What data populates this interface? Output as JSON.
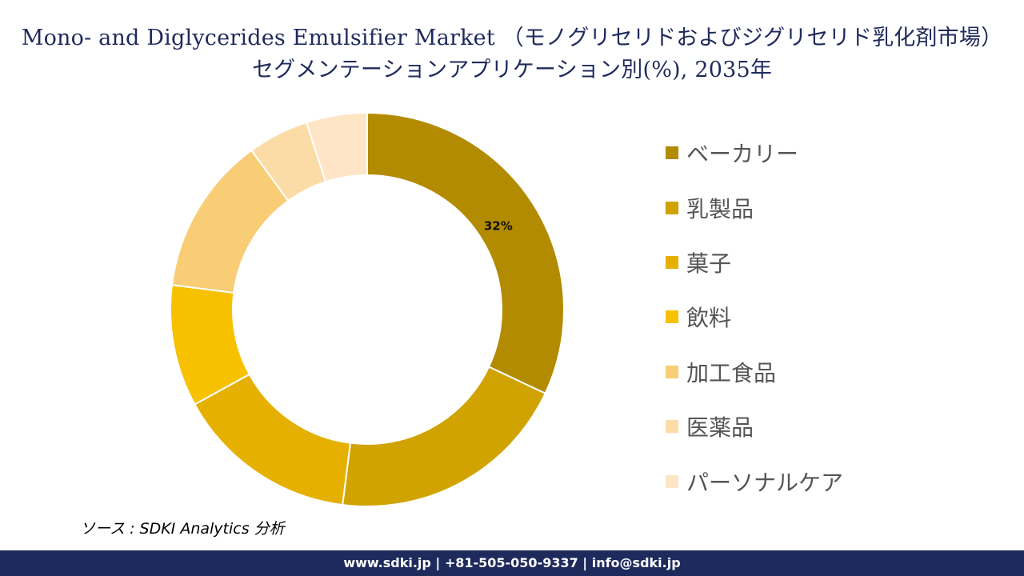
{
  "title": "Mono- and Diglycerides Emulsifier Market （モノグリセリドおよびジグリセリド乳化剤市場）セグメンテーションアプリケーション別(%), 2035年",
  "source": "ソース : SDKI Analytics 分析",
  "footer": "www.sdki.jp | +81-505-050-9337 | info@sdki.jp",
  "colors": {
    "title": "#1f2a5c",
    "footer_bg": "#1f2a5c"
  },
  "chart_data": {
    "type": "pie",
    "variant": "donut",
    "legend_position": "right",
    "categories": [
      "ベーカリー",
      "乳製品",
      "菓子",
      "飲料",
      "加工食品",
      "医薬品",
      "パーソナルケア"
    ],
    "values": [
      32,
      20,
      15,
      10,
      13,
      5,
      5
    ],
    "colors": [
      "#b38b00",
      "#d1a300",
      "#e6b000",
      "#f7c100",
      "#f8cd75",
      "#fbdca6",
      "#fde5c6"
    ],
    "data_labels": [
      "32%",
      "",
      "",
      "",
      "",
      "",
      ""
    ]
  }
}
